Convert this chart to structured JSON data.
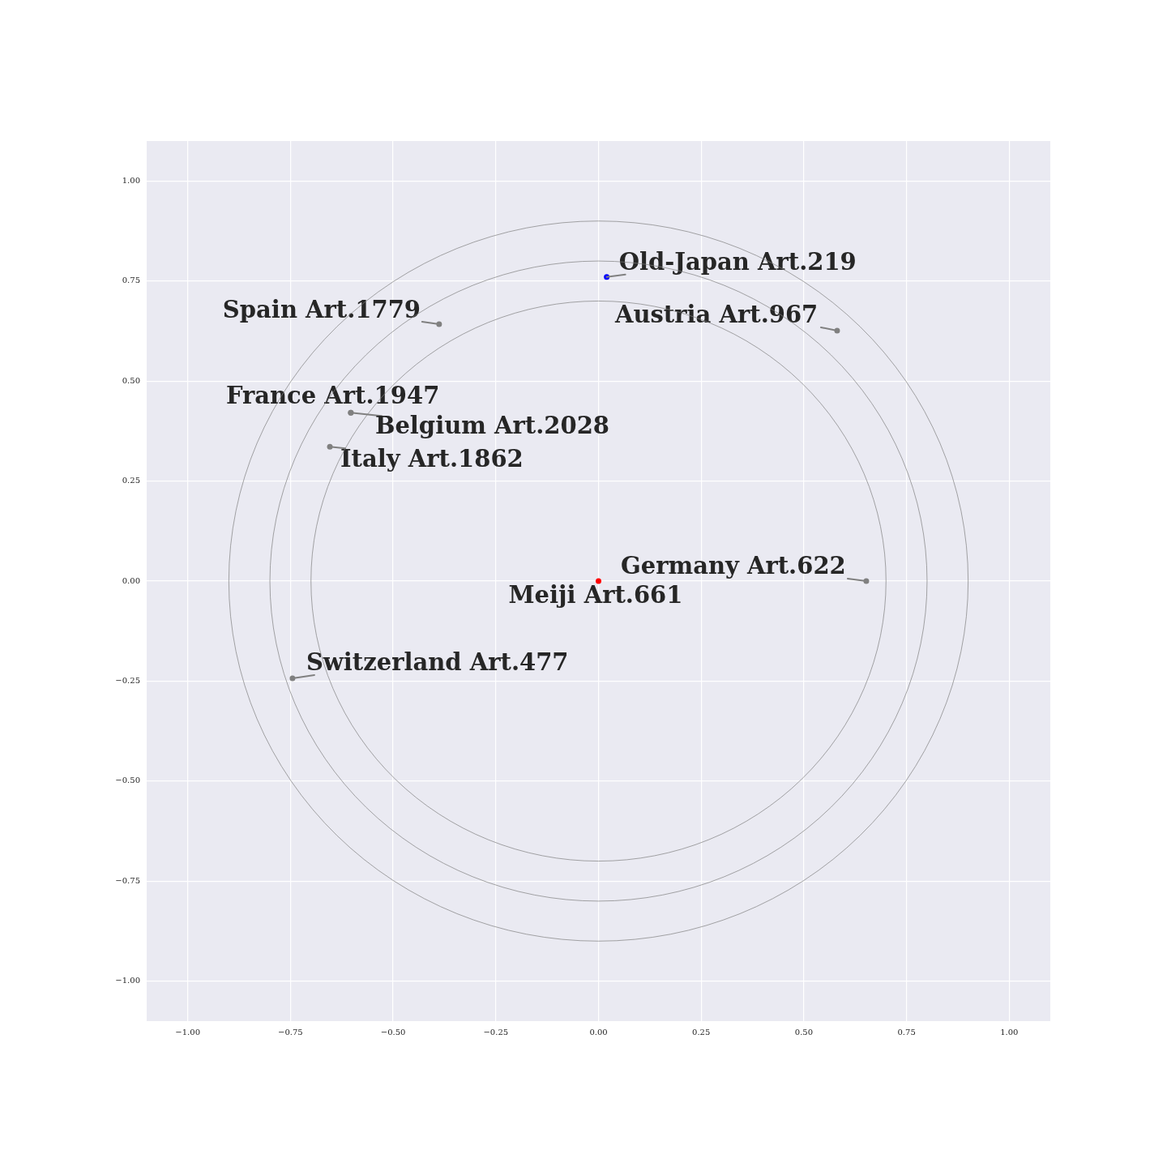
{
  "chart_data": {
    "type": "scatter",
    "xlim": [
      -1.1,
      1.1
    ],
    "ylim": [
      -1.1,
      1.1
    ],
    "xticks": [
      {
        "value": -1,
        "label": "−1.00"
      },
      {
        "value": -0.75,
        "label": "−0.75"
      },
      {
        "value": -0.5,
        "label": "−0.50"
      },
      {
        "value": -0.25,
        "label": "−0.25"
      },
      {
        "value": 0,
        "label": "0.00"
      },
      {
        "value": 0.25,
        "label": "0.25"
      },
      {
        "value": 0.5,
        "label": "0.50"
      },
      {
        "value": 0.75,
        "label": "0.75"
      },
      {
        "value": 1,
        "label": "1.00"
      }
    ],
    "yticks": [
      {
        "value": -1,
        "label": "−1.00"
      },
      {
        "value": -0.75,
        "label": "−0.75"
      },
      {
        "value": -0.5,
        "label": "−0.50"
      },
      {
        "value": -0.25,
        "label": "−0.25"
      },
      {
        "value": 0,
        "label": "0.00"
      },
      {
        "value": 0.25,
        "label": "0.25"
      },
      {
        "value": 0.5,
        "label": "0.50"
      },
      {
        "value": 0.75,
        "label": "0.75"
      },
      {
        "value": 1,
        "label": "1.00"
      }
    ],
    "grid": true,
    "legend": false,
    "marker": "circle",
    "series": [
      {
        "x": [
          0.02,
          -0.388,
          0.581,
          -0.603,
          -0.603,
          -0.654,
          0.652,
          0,
          -0.745
        ],
        "values": [
          0.76,
          0.642,
          0.626,
          0.421,
          0.421,
          0.336,
          0,
          0,
          -0.243
        ],
        "colors": [
          "#0000ff",
          "#808080",
          "#808080",
          "#808080",
          "#808080",
          "#808080",
          "#808080",
          "#ff0000",
          "#808080"
        ]
      }
    ],
    "annotations": [
      {
        "text": "Old-Japan Art.219",
        "x": 0.02,
        "y": 0.76
      },
      {
        "text": "Spain Art.1779",
        "x": -0.388,
        "y": 0.642
      },
      {
        "text": "Austria Art.967",
        "x": 0.581,
        "y": 0.626
      },
      {
        "text": "France Art.1947",
        "x": -0.603,
        "y": 0.421
      },
      {
        "text": "Belgium Art.2028",
        "x": -0.603,
        "y": 0.421
      },
      {
        "text": "Italy Art.1862",
        "x": -0.654,
        "y": 0.336
      },
      {
        "text": "Germany Art.622",
        "x": 0.652,
        "y": 0
      },
      {
        "text": "Meiji Art.661",
        "x": 0,
        "y": 0
      },
      {
        "text": "Switzerland Art.477",
        "x": -0.745,
        "y": -0.243
      }
    ]
  }
}
